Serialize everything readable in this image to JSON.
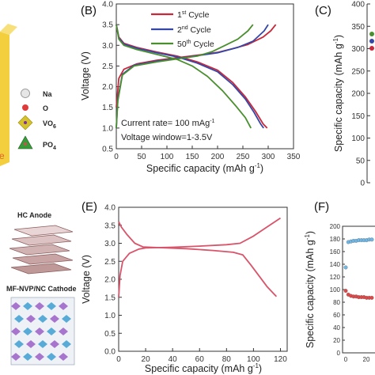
{
  "panels": {
    "A": {
      "legend": [
        {
          "symbol": "Na",
          "color": "#e8e8e8"
        },
        {
          "symbol": "O",
          "color": "#e03a3a"
        },
        {
          "symbol": "VO",
          "sub": "6",
          "color": "#d6c22a"
        },
        {
          "symbol": "PO",
          "sub": "4",
          "color": "#3a9a3a"
        }
      ],
      "edge_letter": "e"
    },
    "B": {
      "label": "(B)"
    },
    "C": {
      "label": "(C)",
      "ylabel": "Specific capacity (mAh g",
      "ylabel_sup": "-1",
      "ylabel_end": ")"
    },
    "D": {
      "hc_label": "HC Anode",
      "cathode_label": "MF-NVP/NC Cathode"
    },
    "E": {
      "label": "(E)"
    },
    "F": {
      "label": "(F)",
      "ylabel": "Specific capacity (mAh g",
      "ylabel_sup": "-1",
      "ylabel_end": ")"
    }
  },
  "colors": {
    "cycle1": "#c8283a",
    "cycle2": "#3447a8",
    "cycle50": "#4a8f2e",
    "panelE": "#d9536a"
  },
  "chart_data": [
    {
      "panel": "B",
      "type": "line",
      "xlabel": "Specific capacity (mAh g",
      "xlabel_sup": "-1",
      "xlabel_end": ")",
      "ylabel": "Voltage (V)",
      "xlim": [
        0,
        350
      ],
      "ylim": [
        0.5,
        4.0
      ],
      "xticks": [
        "0",
        "50",
        "100",
        "150",
        "200",
        "250",
        "300",
        "350"
      ],
      "yticks": [
        "0.5",
        "1.0",
        "1.5",
        "2.0",
        "2.5",
        "3.0",
        "3.5",
        "4.0"
      ],
      "annotations": [
        {
          "text": "Current rate= 100 mAg",
          "sup": "-1"
        },
        {
          "text": "Voltage window=1-3.5V",
          "sup": ""
        }
      ],
      "legend_position": "top-center",
      "series": [
        {
          "name": "1",
          "name_sup": "st",
          "name_end": " Cycle",
          "color_key": "cycle1",
          "charge": [
            [
              0,
              1.5
            ],
            [
              5,
              2.2
            ],
            [
              15,
              2.42
            ],
            [
              40,
              2.55
            ],
            [
              80,
              2.64
            ],
            [
              120,
              2.7
            ],
            [
              160,
              2.76
            ],
            [
              200,
              2.83
            ],
            [
              230,
              2.92
            ],
            [
              260,
              3.02
            ],
            [
              290,
              3.2
            ],
            [
              305,
              3.35
            ],
            [
              315,
              3.5
            ]
          ],
          "discharge": [
            [
              0,
              3.5
            ],
            [
              5,
              3.2
            ],
            [
              15,
              3.05
            ],
            [
              40,
              2.95
            ],
            [
              80,
              2.84
            ],
            [
              120,
              2.74
            ],
            [
              160,
              2.6
            ],
            [
              200,
              2.4
            ],
            [
              230,
              2.1
            ],
            [
              255,
              1.75
            ],
            [
              275,
              1.4
            ],
            [
              290,
              1.1
            ],
            [
              298,
              1.0
            ]
          ]
        },
        {
          "name": "2",
          "name_sup": "nd",
          "name_end": " Cycle",
          "color_key": "cycle2",
          "charge": [
            [
              0,
              1.0
            ],
            [
              3,
              1.7
            ],
            [
              12,
              2.3
            ],
            [
              35,
              2.52
            ],
            [
              80,
              2.62
            ],
            [
              120,
              2.68
            ],
            [
              160,
              2.75
            ],
            [
              200,
              2.82
            ],
            [
              240,
              2.95
            ],
            [
              270,
              3.1
            ],
            [
              292,
              3.35
            ],
            [
              300,
              3.5
            ]
          ],
          "discharge": [
            [
              0,
              3.5
            ],
            [
              5,
              3.18
            ],
            [
              15,
              3.03
            ],
            [
              40,
              2.93
            ],
            [
              80,
              2.82
            ],
            [
              120,
              2.72
            ],
            [
              160,
              2.57
            ],
            [
              200,
              2.36
            ],
            [
              230,
              2.05
            ],
            [
              255,
              1.7
            ],
            [
              272,
              1.38
            ],
            [
              285,
              1.1
            ],
            [
              291,
              1.0
            ]
          ]
        },
        {
          "name": "50",
          "name_sup": "th",
          "name_end": " Cycle",
          "color_key": "cycle50",
          "charge": [
            [
              0,
              1.0
            ],
            [
              3,
              1.65
            ],
            [
              12,
              2.28
            ],
            [
              35,
              2.5
            ],
            [
              80,
              2.6
            ],
            [
              120,
              2.67
            ],
            [
              160,
              2.74
            ],
            [
              190,
              2.85
            ],
            [
              215,
              3.0
            ],
            [
              240,
              3.15
            ],
            [
              260,
              3.35
            ],
            [
              270,
              3.5
            ]
          ],
          "discharge": [
            [
              0,
              3.5
            ],
            [
              5,
              3.15
            ],
            [
              15,
              3.0
            ],
            [
              40,
              2.9
            ],
            [
              80,
              2.78
            ],
            [
              120,
              2.66
            ],
            [
              150,
              2.5
            ],
            [
              180,
              2.25
            ],
            [
              210,
              1.9
            ],
            [
              235,
              1.55
            ],
            [
              255,
              1.25
            ],
            [
              266,
              1.0
            ]
          ]
        }
      ]
    },
    {
      "panel": "E",
      "type": "line",
      "xlabel": "Specific capacity (mAh g",
      "xlabel_sup": "-1",
      "xlabel_end": ")",
      "ylabel": "Voltage (V)",
      "xlim": [
        0,
        125
      ],
      "ylim": [
        0.0,
        4.0
      ],
      "xticks": [
        "0",
        "20",
        "40",
        "60",
        "80",
        "100",
        "120"
      ],
      "yticks": [
        "0.0",
        "0.5",
        "1.0",
        "1.5",
        "2.0",
        "2.5",
        "3.0",
        "3.5",
        "4.0"
      ],
      "series": [
        {
          "color_key": "panelE",
          "charge": [
            [
              0,
              1.5
            ],
            [
              1,
              2.1
            ],
            [
              3,
              2.5
            ],
            [
              8,
              2.72
            ],
            [
              15,
              2.84
            ],
            [
              20,
              2.87
            ],
            [
              40,
              2.89
            ],
            [
              60,
              2.92
            ],
            [
              80,
              2.96
            ],
            [
              90,
              3.0
            ],
            [
              100,
              3.2
            ],
            [
              110,
              3.45
            ],
            [
              120,
              3.7
            ]
          ],
          "discharge": [
            [
              0,
              3.6
            ],
            [
              2,
              3.45
            ],
            [
              6,
              3.25
            ],
            [
              12,
              3.0
            ],
            [
              18,
              2.9
            ],
            [
              30,
              2.88
            ],
            [
              50,
              2.85
            ],
            [
              70,
              2.8
            ],
            [
              85,
              2.75
            ],
            [
              92,
              2.68
            ],
            [
              98,
              2.4
            ],
            [
              105,
              2.05
            ],
            [
              110,
              1.8
            ],
            [
              115,
              1.6
            ],
            [
              117,
              1.52
            ]
          ]
        }
      ]
    },
    {
      "panel": "C",
      "type": "scatter",
      "ylabel": "Specific capacity (mAh g-1)",
      "ylim": [
        0,
        400
      ],
      "yticks": [
        "0",
        "50",
        "100",
        "150",
        "200",
        "250",
        "300",
        "350",
        "400"
      ]
    },
    {
      "panel": "F",
      "type": "scatter",
      "ylabel": "Specific capacity (mAh g-1)",
      "ylim": [
        0,
        200
      ],
      "xticks": [
        "0",
        "20"
      ],
      "yticks": [
        "0",
        "20",
        "40",
        "60",
        "80",
        "100",
        "120",
        "140",
        "160",
        "180",
        "200"
      ],
      "series": [
        {
          "color": "#6fb7e6",
          "y": [
            135,
            175,
            176,
            177,
            177,
            178,
            178,
            178,
            178,
            179,
            179,
            179,
            179,
            179
          ]
        },
        {
          "color": "#e04848",
          "y": [
            98,
            92,
            90,
            89,
            89,
            88,
            88,
            88,
            87,
            87,
            87,
            87,
            87,
            87
          ]
        }
      ]
    }
  ]
}
